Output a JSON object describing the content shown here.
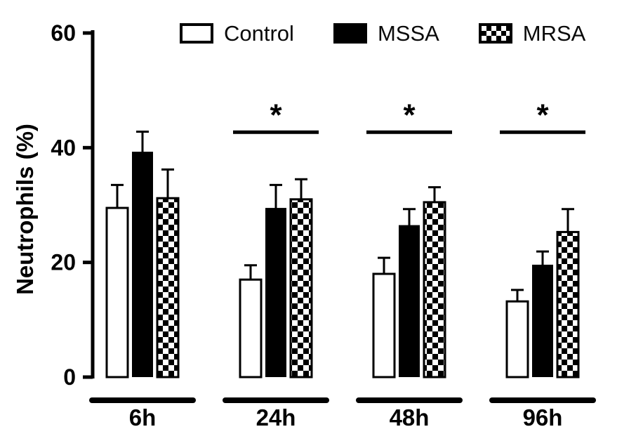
{
  "figure": {
    "background": "#ffffff",
    "foreground": "#000000"
  },
  "legend": {
    "items": [
      {
        "label": "Control",
        "swatch": "white-solid-swatch"
      },
      {
        "label": "MSSA",
        "swatch": "black-solid-swatch"
      },
      {
        "label": "MRSA",
        "swatch": "checkerboard-swatch"
      }
    ]
  },
  "chart_data": {
    "type": "bar",
    "title": "",
    "xlabel": "",
    "ylabel": "Neutrophils (%)",
    "ylim": [
      0,
      60
    ],
    "yticks": [
      0,
      20,
      40,
      60
    ],
    "grid": false,
    "legend_position": "top",
    "categories": [
      "6h",
      "24h",
      "48h",
      "96h"
    ],
    "series": [
      {
        "name": "Control",
        "pattern": "solid-white",
        "values": [
          29.5,
          17.0,
          18.0,
          13.2
        ],
        "errors": [
          4.0,
          2.5,
          2.8,
          2.0
        ]
      },
      {
        "name": "MSSA",
        "pattern": "solid-black",
        "values": [
          39.3,
          29.5,
          26.5,
          19.6
        ],
        "errors": [
          3.5,
          4.0,
          2.8,
          2.3
        ]
      },
      {
        "name": "MRSA",
        "pattern": "checker",
        "values": [
          31.2,
          31.0,
          30.5,
          25.3
        ],
        "errors": [
          5.0,
          3.5,
          2.6,
          4.0
        ]
      }
    ],
    "error_bars": "upper-only",
    "significance": [
      {
        "category": "24h",
        "label": "*",
        "line_value": 42.7
      },
      {
        "category": "48h",
        "label": "*",
        "line_value": 42.7
      },
      {
        "category": "96h",
        "label": "*",
        "line_value": 42.7
      }
    ]
  }
}
